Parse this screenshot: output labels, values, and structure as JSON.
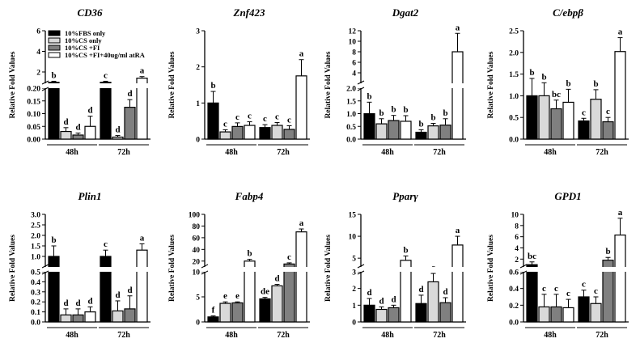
{
  "legend": [
    "10%FBS only",
    "10%CS only",
    "10%CS +FI",
    "10%CS +FI+40ug/ml atRA"
  ],
  "chart_data": [
    {
      "type": "bar",
      "title": "CD36",
      "ylabel": "Relative Fold Values",
      "categories": [
        "48h",
        "72h"
      ],
      "values": [
        [
          1.0,
          0.03,
          0.016,
          0.05
        ],
        [
          1.0,
          0.008,
          0.125,
          1.4
        ]
      ],
      "errors": [
        [
          0.1,
          0.015,
          0.008,
          0.04
        ],
        [
          0.1,
          0.006,
          0.03,
          0.15
        ]
      ],
      "letters": [
        [
          "b",
          "d",
          "d",
          "d"
        ],
        [
          "c",
          "d",
          "d",
          "a"
        ]
      ],
      "axes": [
        {
          "range": [
            0,
            0.2
          ],
          "ticks": [
            {
              "v": 0,
              "t": "0.00"
            },
            {
              "v": 0.05,
              "t": "0.05"
            },
            {
              "v": 0.1,
              "t": "0.10"
            },
            {
              "v": 0.15,
              "t": "0.15"
            },
            {
              "v": 0.2,
              "t": "0.20"
            }
          ]
        },
        {
          "range": [
            0.9,
            6
          ],
          "ticks": [
            {
              "v": 2,
              "t": "2"
            },
            {
              "v": 4,
              "t": "4"
            },
            {
              "v": 6,
              "t": "6"
            }
          ]
        }
      ]
    },
    {
      "type": "bar",
      "title": "Znf423",
      "ylabel": "Relative Fold Values",
      "categories": [
        "48h",
        "72h"
      ],
      "values": [
        [
          1.0,
          0.2,
          0.35,
          0.38
        ],
        [
          0.32,
          0.38,
          0.27,
          1.75
        ]
      ],
      "errors": [
        [
          0.32,
          0.06,
          0.1,
          0.1
        ],
        [
          0.08,
          0.08,
          0.1,
          0.45
        ]
      ],
      "letters": [
        [
          "b",
          "c",
          "c",
          "c"
        ],
        [
          "c",
          "c",
          "c",
          "a"
        ]
      ],
      "axes": [
        {
          "range": [
            0,
            3
          ],
          "ticks": [
            {
              "v": 0,
              "t": "0"
            },
            {
              "v": 1,
              "t": "1"
            },
            {
              "v": 2,
              "t": "2"
            },
            {
              "v": 3,
              "t": "3"
            }
          ]
        }
      ]
    },
    {
      "type": "bar",
      "title": "Dgat2",
      "ylabel": "Relative Fold Values",
      "categories": [
        "48h",
        "72h"
      ],
      "values": [
        [
          1.0,
          0.6,
          0.73,
          0.7
        ],
        [
          0.27,
          0.52,
          0.55,
          8.0
        ]
      ],
      "errors": [
        [
          0.45,
          0.2,
          0.2,
          0.22
        ],
        [
          0.1,
          0.1,
          0.25,
          3.5
        ]
      ],
      "letters": [
        [
          "b",
          "b",
          "b",
          "b"
        ],
        [
          "b",
          "b",
          "b",
          "a"
        ]
      ],
      "axes": [
        {
          "range": [
            0,
            2
          ],
          "ticks": [
            {
              "v": 0,
              "t": "0.0"
            },
            {
              "v": 0.5,
              "t": "0.5"
            },
            {
              "v": 1,
              "t": "1.0"
            },
            {
              "v": 1.5,
              "t": "1.5"
            },
            {
              "v": 2,
              "t": "2.0"
            }
          ]
        },
        {
          "range": [
            2,
            12
          ],
          "ticks": [
            {
              "v": 4,
              "t": "4"
            },
            {
              "v": 6,
              "t": "6"
            },
            {
              "v": 8,
              "t": "8"
            },
            {
              "v": 10,
              "t": "10"
            },
            {
              "v": 12,
              "t": "12"
            }
          ]
        }
      ]
    },
    {
      "type": "bar",
      "title": "C/ebpβ",
      "ylabel": "Relative Fold Values",
      "categories": [
        "48h",
        "72h"
      ],
      "values": [
        [
          1.0,
          1.0,
          0.7,
          0.85
        ],
        [
          0.42,
          0.92,
          0.4,
          2.02
        ]
      ],
      "errors": [
        [
          0.4,
          0.3,
          0.2,
          0.3
        ],
        [
          0.06,
          0.22,
          0.1,
          0.32
        ]
      ],
      "letters": [
        [
          "b",
          "b",
          "bc",
          "b"
        ],
        [
          "c",
          "b",
          "c",
          "a"
        ]
      ],
      "axes": [
        {
          "range": [
            0,
            2.5
          ],
          "ticks": [
            {
              "v": 0,
              "t": "0.0"
            },
            {
              "v": 0.5,
              "t": "0.5"
            },
            {
              "v": 1,
              "t": "1.0"
            },
            {
              "v": 1.5,
              "t": "1.5"
            },
            {
              "v": 2,
              "t": "2.0"
            },
            {
              "v": 2.5,
              "t": "2.5"
            }
          ]
        }
      ]
    },
    {
      "type": "bar",
      "title": "Plin1",
      "ylabel": "Relative Fold Values",
      "categories": [
        "48h",
        "72h"
      ],
      "values": [
        [
          1.0,
          0.07,
          0.07,
          0.1
        ],
        [
          1.0,
          0.11,
          0.13,
          1.3
        ]
      ],
      "errors": [
        [
          0.5,
          0.06,
          0.06,
          0.05
        ],
        [
          0.3,
          0.1,
          0.13,
          0.3
        ]
      ],
      "letters": [
        [
          "b",
          "d",
          "d",
          "d"
        ],
        [
          "c",
          "d",
          "d",
          "a"
        ]
      ],
      "axes": [
        {
          "range": [
            0,
            0.5
          ],
          "ticks": [
            {
              "v": 0,
              "t": "0.0"
            },
            {
              "v": 0.1,
              "t": "0.1"
            },
            {
              "v": 0.2,
              "t": "0.2"
            },
            {
              "v": 0.3,
              "t": "0.3"
            },
            {
              "v": 0.4,
              "t": "0.4"
            },
            {
              "v": 0.5,
              "t": "0.5"
            }
          ]
        },
        {
          "range": [
            0.5,
            3
          ],
          "ticks": [
            {
              "v": 1,
              "t": "1.0"
            },
            {
              "v": 1.5,
              "t": "1.5"
            },
            {
              "v": 2,
              "t": "2.0"
            },
            {
              "v": 2.5,
              "t": "2.5"
            },
            {
              "v": 3,
              "t": "3.0"
            }
          ]
        }
      ]
    },
    {
      "type": "bar",
      "title": "Fabp4",
      "ylabel": "Relative Fold Values",
      "categories": [
        "48h",
        "72h"
      ],
      "values": [
        [
          1.0,
          3.7,
          3.8,
          20
        ],
        [
          4.6,
          7.2,
          15,
          70
        ]
      ],
      "errors": [
        [
          0.2,
          0.3,
          0.2,
          3
        ],
        [
          0.3,
          0.3,
          2,
          5
        ]
      ],
      "letters": [
        [
          "f",
          "e",
          "e",
          "b"
        ],
        [
          "de",
          "d",
          "c",
          "a"
        ]
      ],
      "axes": [
        {
          "range": [
            0,
            10
          ],
          "ticks": [
            {
              "v": 0,
              "t": "0"
            },
            {
              "v": 5,
              "t": "5"
            },
            {
              "v": 10,
              "t": "10"
            }
          ]
        },
        {
          "range": [
            10,
            100
          ],
          "ticks": [
            {
              "v": 20,
              "t": "20"
            },
            {
              "v": 40,
              "t": "40"
            },
            {
              "v": 60,
              "t": "60"
            },
            {
              "v": 80,
              "t": "80"
            },
            {
              "v": 100,
              "t": "100"
            }
          ]
        }
      ]
    },
    {
      "type": "bar",
      "title": "Pparγ",
      "ylabel": "Relative Fold Values",
      "categories": [
        "48h",
        "72h"
      ],
      "values": [
        [
          1.0,
          0.75,
          0.85,
          4.5
        ],
        [
          1.1,
          2.4,
          1.15,
          8.0
        ]
      ],
      "errors": [
        [
          0.4,
          0.15,
          0.15,
          1.0
        ],
        [
          0.5,
          0.5,
          0.3,
          2.0
        ]
      ],
      "letters": [
        [
          "d",
          "d",
          "d",
          "b"
        ],
        [
          "d",
          "c",
          "d",
          "a"
        ]
      ],
      "axes": [
        {
          "range": [
            0,
            3
          ],
          "ticks": [
            {
              "v": 0,
              "t": "0"
            },
            {
              "v": 1,
              "t": "1"
            },
            {
              "v": 2,
              "t": "2"
            },
            {
              "v": 3,
              "t": "3"
            }
          ]
        },
        {
          "range": [
            3,
            15
          ],
          "ticks": [
            {
              "v": 5,
              "t": "5"
            },
            {
              "v": 10,
              "t": "10"
            },
            {
              "v": 15,
              "t": "15"
            }
          ]
        }
      ]
    },
    {
      "type": "bar",
      "title": "GPD1",
      "ylabel": "Relative Fold Values",
      "categories": [
        "48h",
        "72h"
      ],
      "values": [
        [
          1.0,
          0.18,
          0.18,
          0.17
        ],
        [
          0.3,
          0.22,
          1.8,
          6.3
        ]
      ],
      "errors": [
        [
          0.5,
          0.15,
          0.15,
          0.1
        ],
        [
          0.08,
          0.08,
          0.5,
          3.0
        ]
      ],
      "letters": [
        [
          "bc",
          "c",
          "c",
          "c"
        ],
        [
          "c",
          "c",
          "b",
          "a"
        ]
      ],
      "axes": [
        {
          "range": [
            0,
            0.6
          ],
          "ticks": [
            {
              "v": 0,
              "t": "0.0"
            },
            {
              "v": 0.2,
              "t": "0.2"
            },
            {
              "v": 0.4,
              "t": "0.4"
            },
            {
              "v": 0.6,
              "t": "0.6"
            }
          ]
        },
        {
          "range": [
            0.6,
            10
          ],
          "ticks": [
            {
              "v": 2,
              "t": "2"
            },
            {
              "v": 4,
              "t": "4"
            },
            {
              "v": 6,
              "t": "6"
            },
            {
              "v": 8,
              "t": "8"
            },
            {
              "v": 10,
              "t": "10"
            }
          ]
        }
      ]
    }
  ]
}
